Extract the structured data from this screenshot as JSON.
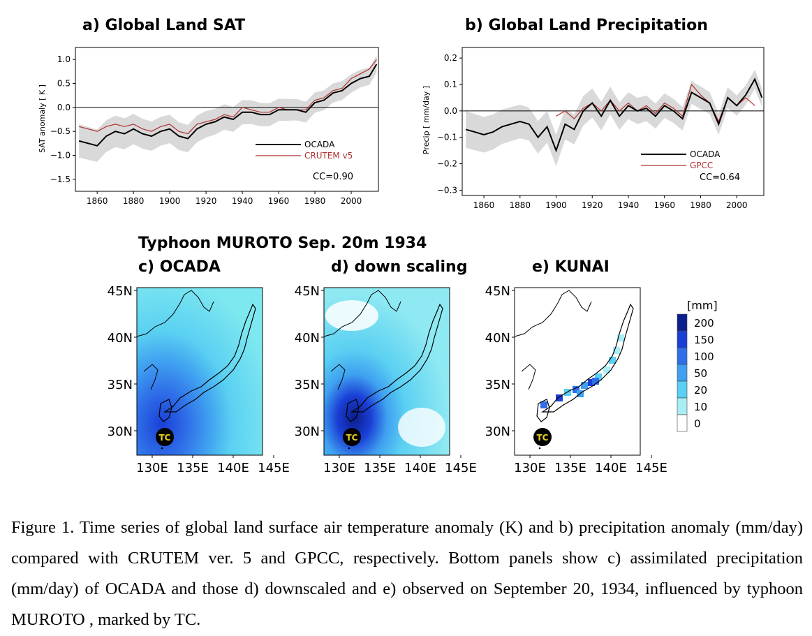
{
  "charts": [
    {
      "id": "a",
      "title": "a) Global Land SAT",
      "ylabel": "SAT anomaly [ K ]",
      "xticks": [
        "1860",
        "1880",
        "1900",
        "1920",
        "1940",
        "1960",
        "1980",
        "2000"
      ],
      "yticks": [
        "1.0",
        "0.5",
        "0.0",
        "−0.5",
        "−1.0",
        "−1.5"
      ],
      "legend": [
        {
          "label": "OCADA",
          "color": "#000000"
        },
        {
          "label": "CRUTEM v5",
          "color": "#b03030"
        }
      ],
      "cc_label": "CC=0.90"
    },
    {
      "id": "b",
      "title": "b) Global Land Precipitation",
      "ylabel": "Precip [ mm/day ]",
      "xticks": [
        "1860",
        "1880",
        "1900",
        "1920",
        "1940",
        "1960",
        "1980",
        "2000"
      ],
      "yticks": [
        "0.2",
        "0.1",
        "0.0",
        "−0.1",
        "−0.2",
        "−0.3"
      ],
      "legend": [
        {
          "label": "OCADA",
          "color": "#000000"
        },
        {
          "label": "GPCC",
          "color": "#b03030"
        }
      ],
      "cc_label": "CC=0.64"
    }
  ],
  "chart_data": [
    {
      "type": "line",
      "title": "a) Global Land SAT",
      "ylabel": "SAT anomaly [ K ]",
      "xlim": [
        1848,
        2015
      ],
      "ylim": [
        -1.75,
        1.25
      ],
      "grid": false,
      "legend_position": "bottom-right",
      "series": [
        {
          "name": "OCADA",
          "color": "#000000",
          "x": [
            1850,
            1855,
            1860,
            1865,
            1870,
            1875,
            1880,
            1885,
            1890,
            1895,
            1900,
            1905,
            1910,
            1915,
            1920,
            1925,
            1930,
            1935,
            1940,
            1945,
            1950,
            1955,
            1960,
            1965,
            1970,
            1975,
            1980,
            1985,
            1990,
            1995,
            2000,
            2005,
            2010,
            2014
          ],
          "y": [
            -0.7,
            -0.75,
            -0.8,
            -0.6,
            -0.5,
            -0.55,
            -0.45,
            -0.55,
            -0.6,
            -0.5,
            -0.45,
            -0.6,
            -0.65,
            -0.45,
            -0.35,
            -0.3,
            -0.2,
            -0.25,
            -0.1,
            -0.1,
            -0.15,
            -0.15,
            -0.05,
            -0.05,
            -0.05,
            -0.1,
            0.1,
            0.15,
            0.3,
            0.35,
            0.5,
            0.6,
            0.65,
            0.9
          ]
        },
        {
          "name": "CRUTEM v5",
          "color": "#b03030",
          "x": [
            1850,
            1855,
            1860,
            1865,
            1870,
            1875,
            1880,
            1885,
            1890,
            1895,
            1900,
            1905,
            1910,
            1915,
            1920,
            1925,
            1930,
            1935,
            1940,
            1945,
            1950,
            1955,
            1960,
            1965,
            1970,
            1975,
            1980,
            1985,
            1990,
            1995,
            2000,
            2005,
            2010,
            2014
          ],
          "y": [
            -0.4,
            -0.45,
            -0.5,
            -0.4,
            -0.35,
            -0.4,
            -0.35,
            -0.45,
            -0.5,
            -0.4,
            -0.35,
            -0.5,
            -0.55,
            -0.35,
            -0.3,
            -0.25,
            -0.15,
            -0.2,
            0.0,
            -0.05,
            -0.1,
            -0.1,
            0.0,
            -0.05,
            -0.05,
            -0.05,
            0.15,
            0.2,
            0.35,
            0.4,
            0.6,
            0.7,
            0.8,
            1.0
          ]
        }
      ],
      "annotations": [
        "CC=0.90"
      ]
    },
    {
      "type": "line",
      "title": "b) Global Land Precipitation",
      "ylabel": "Precip [ mm/day ]",
      "xlim": [
        1848,
        2015
      ],
      "ylim": [
        -0.32,
        0.24
      ],
      "grid": false,
      "legend_position": "bottom-right",
      "series": [
        {
          "name": "OCADA",
          "color": "#000000",
          "x": [
            1850,
            1855,
            1860,
            1865,
            1870,
            1875,
            1880,
            1885,
            1890,
            1895,
            1900,
            1905,
            1910,
            1915,
            1920,
            1925,
            1930,
            1935,
            1940,
            1945,
            1950,
            1955,
            1960,
            1965,
            1970,
            1975,
            1980,
            1985,
            1990,
            1995,
            2000,
            2005,
            2010,
            2014
          ],
          "y": [
            -0.07,
            -0.08,
            -0.09,
            -0.08,
            -0.06,
            -0.05,
            -0.04,
            -0.05,
            -0.1,
            -0.06,
            -0.15,
            -0.05,
            -0.07,
            0.0,
            0.03,
            -0.02,
            0.04,
            -0.02,
            0.02,
            0.0,
            0.01,
            -0.02,
            0.02,
            0.0,
            -0.03,
            0.07,
            0.05,
            0.03,
            -0.05,
            0.05,
            0.02,
            0.06,
            0.12,
            0.05
          ]
        },
        {
          "name": "GPCC",
          "color": "#b03030",
          "x": [
            1900,
            1905,
            1910,
            1915,
            1920,
            1925,
            1930,
            1935,
            1940,
            1945,
            1950,
            1955,
            1960,
            1965,
            1970,
            1975,
            1980,
            1985,
            1990,
            1995,
            2000,
            2005,
            2010
          ],
          "y": [
            -0.02,
            0.0,
            -0.03,
            0.01,
            0.03,
            0.0,
            0.04,
            0.0,
            0.03,
            0.0,
            0.02,
            -0.01,
            0.03,
            0.01,
            -0.02,
            0.1,
            0.06,
            0.03,
            -0.04,
            0.05,
            0.02,
            0.05,
            0.02
          ]
        }
      ],
      "annotations": [
        "CC=0.64"
      ]
    }
  ],
  "typhoon_title": "Typhoon MUROTO   Sep. 20m 1934",
  "maps": [
    {
      "id": "c",
      "title": "c) OCADA"
    },
    {
      "id": "d",
      "title": "d) down scaling"
    },
    {
      "id": "e",
      "title": "e) KUNAI"
    }
  ],
  "map_lat_ticks": [
    "45N",
    "40N",
    "35N",
    "30N"
  ],
  "map_lon_ticks": [
    "130E",
    "135E",
    "140E",
    "145E"
  ],
  "tc_label": "TC",
  "colorbar": {
    "unit": "[mm]",
    "levels": [
      "200",
      "150",
      "100",
      "50",
      "20",
      "10",
      "0"
    ],
    "colors": [
      "#0b1e8c",
      "#1a3fd6",
      "#2f6ee8",
      "#3fa0f0",
      "#5ad0f2",
      "#a8eef5",
      "#ffffff"
    ]
  },
  "colors": {
    "ocada_line": "#000000",
    "obs_line": "#b03030",
    "spread": "#d9d9d9",
    "map_base": "#7ee8f0"
  },
  "caption": "Figure 1. Time series of global land surface air temperature anomaly (K) and b) precipitation anomaly (mm/day) compared with CRUTEM ver. 5 and GPCC, respectively. Bottom panels show c) assimilated precipitation (mm/day) of OCADA and those d) downscaled and e) observed on September 20, 1934, influenced by typhoon MUROTO , marked by TC."
}
